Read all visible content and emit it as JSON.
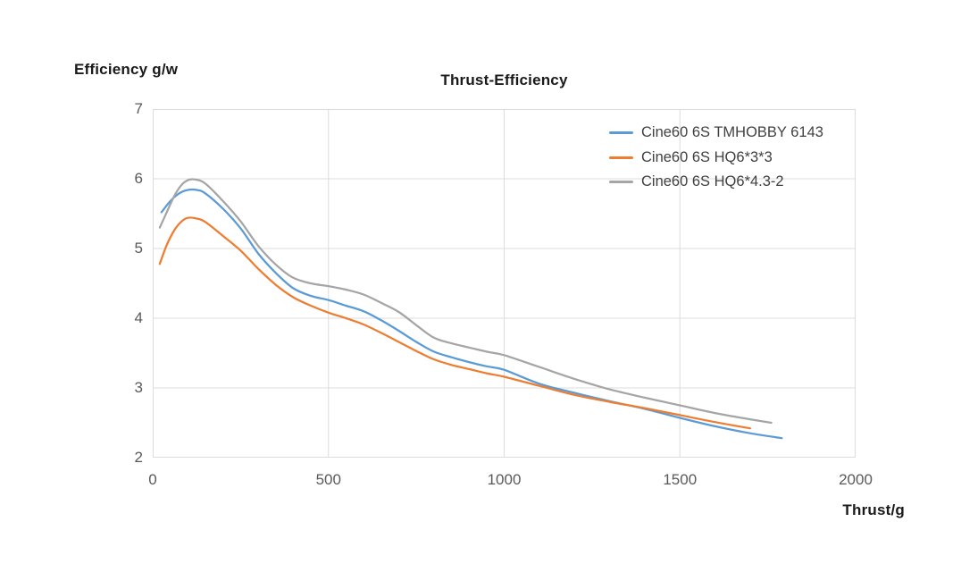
{
  "chart": {
    "background": "#ffffff",
    "title_color": "#1a1a1a",
    "tick_color": "#595959",
    "legend_text_color": "#404040",
    "grid_color": "#dcdcdc"
  },
  "chart_data": {
    "type": "line",
    "title": "Thrust-Efficiency",
    "xlabel": "Thrust/g",
    "ylabel": "Efficiency g/w",
    "xlim": [
      0,
      2000
    ],
    "ylim": [
      2,
      7
    ],
    "x_ticks": [
      0,
      500,
      1000,
      1500,
      2000
    ],
    "y_ticks": [
      2,
      3,
      4,
      5,
      6,
      7
    ],
    "grid": true,
    "legend_position": "top-right-inside",
    "series": [
      {
        "name": "Cine60 6S TMHOBBY 6143",
        "color": "#5B9BD5",
        "points": [
          [
            25,
            5.52
          ],
          [
            50,
            5.68
          ],
          [
            75,
            5.79
          ],
          [
            100,
            5.84
          ],
          [
            125,
            5.84
          ],
          [
            150,
            5.79
          ],
          [
            200,
            5.57
          ],
          [
            250,
            5.29
          ],
          [
            300,
            4.93
          ],
          [
            350,
            4.65
          ],
          [
            400,
            4.43
          ],
          [
            450,
            4.32
          ],
          [
            500,
            4.26
          ],
          [
            550,
            4.18
          ],
          [
            600,
            4.1
          ],
          [
            650,
            3.97
          ],
          [
            700,
            3.82
          ],
          [
            750,
            3.66
          ],
          [
            800,
            3.52
          ],
          [
            850,
            3.44
          ],
          [
            900,
            3.37
          ],
          [
            950,
            3.31
          ],
          [
            1000,
            3.26
          ],
          [
            1100,
            3.06
          ],
          [
            1200,
            2.93
          ],
          [
            1300,
            2.81
          ],
          [
            1400,
            2.7
          ],
          [
            1500,
            2.57
          ],
          [
            1600,
            2.45
          ],
          [
            1700,
            2.35
          ],
          [
            1790,
            2.28
          ]
        ]
      },
      {
        "name": "Cine60 6S HQ6*3*3",
        "color": "#ED7D31",
        "points": [
          [
            20,
            4.78
          ],
          [
            40,
            5.05
          ],
          [
            60,
            5.25
          ],
          [
            80,
            5.38
          ],
          [
            100,
            5.44
          ],
          [
            125,
            5.43
          ],
          [
            150,
            5.38
          ],
          [
            200,
            5.18
          ],
          [
            250,
            4.97
          ],
          [
            300,
            4.71
          ],
          [
            350,
            4.48
          ],
          [
            400,
            4.3
          ],
          [
            450,
            4.18
          ],
          [
            500,
            4.08
          ],
          [
            550,
            4.0
          ],
          [
            600,
            3.91
          ],
          [
            650,
            3.79
          ],
          [
            700,
            3.66
          ],
          [
            750,
            3.53
          ],
          [
            800,
            3.41
          ],
          [
            850,
            3.33
          ],
          [
            900,
            3.27
          ],
          [
            950,
            3.21
          ],
          [
            1000,
            3.16
          ],
          [
            1100,
            3.03
          ],
          [
            1200,
            2.9
          ],
          [
            1300,
            2.8
          ],
          [
            1400,
            2.71
          ],
          [
            1500,
            2.61
          ],
          [
            1600,
            2.51
          ],
          [
            1700,
            2.42
          ]
        ]
      },
      {
        "name": "Cine60 6S HQ6*4.3-2",
        "color": "#A5A5A5",
        "points": [
          [
            20,
            5.3
          ],
          [
            40,
            5.52
          ],
          [
            60,
            5.74
          ],
          [
            80,
            5.9
          ],
          [
            100,
            5.98
          ],
          [
            120,
            5.99
          ],
          [
            150,
            5.93
          ],
          [
            200,
            5.68
          ],
          [
            250,
            5.39
          ],
          [
            300,
            5.04
          ],
          [
            350,
            4.77
          ],
          [
            400,
            4.58
          ],
          [
            450,
            4.5
          ],
          [
            500,
            4.46
          ],
          [
            550,
            4.41
          ],
          [
            600,
            4.34
          ],
          [
            650,
            4.22
          ],
          [
            700,
            4.09
          ],
          [
            750,
            3.9
          ],
          [
            800,
            3.72
          ],
          [
            850,
            3.64
          ],
          [
            900,
            3.58
          ],
          [
            950,
            3.52
          ],
          [
            1000,
            3.47
          ],
          [
            1100,
            3.3
          ],
          [
            1200,
            3.13
          ],
          [
            1300,
            2.98
          ],
          [
            1400,
            2.86
          ],
          [
            1500,
            2.75
          ],
          [
            1600,
            2.64
          ],
          [
            1700,
            2.55
          ],
          [
            1760,
            2.5
          ]
        ]
      }
    ]
  }
}
